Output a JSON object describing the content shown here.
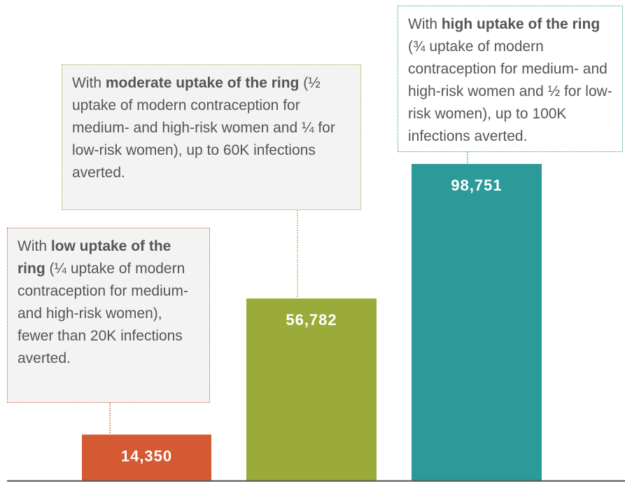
{
  "chart_data": {
    "type": "bar",
    "categories": [
      null,
      null,
      null
    ],
    "values": [
      14350,
      56782,
      98751
    ],
    "value_labels": [
      "14,350",
      "56,782",
      "98,751"
    ],
    "colors": [
      "#d35a32",
      "#9aab3a",
      "#2b9a98"
    ],
    "annotations": [
      {
        "parts": [
          "With ",
          "low uptake of the ring",
          " (¼ uptake of modern contraception for medium- and high-risk women), fewer than 20K infections averted."
        ]
      },
      {
        "parts": [
          "With ",
          "moderate uptake of the ring",
          " (½ uptake of modern contraception for medium- and high-risk women and ¼ for low-risk women), up to 60K infections averted."
        ]
      },
      {
        "parts": [
          "With ",
          "high uptake of the ring",
          " (¾ uptake of modern contraception for medium- and high-risk women and ½ for low-risk women), up to 100K infections averted."
        ]
      }
    ]
  }
}
